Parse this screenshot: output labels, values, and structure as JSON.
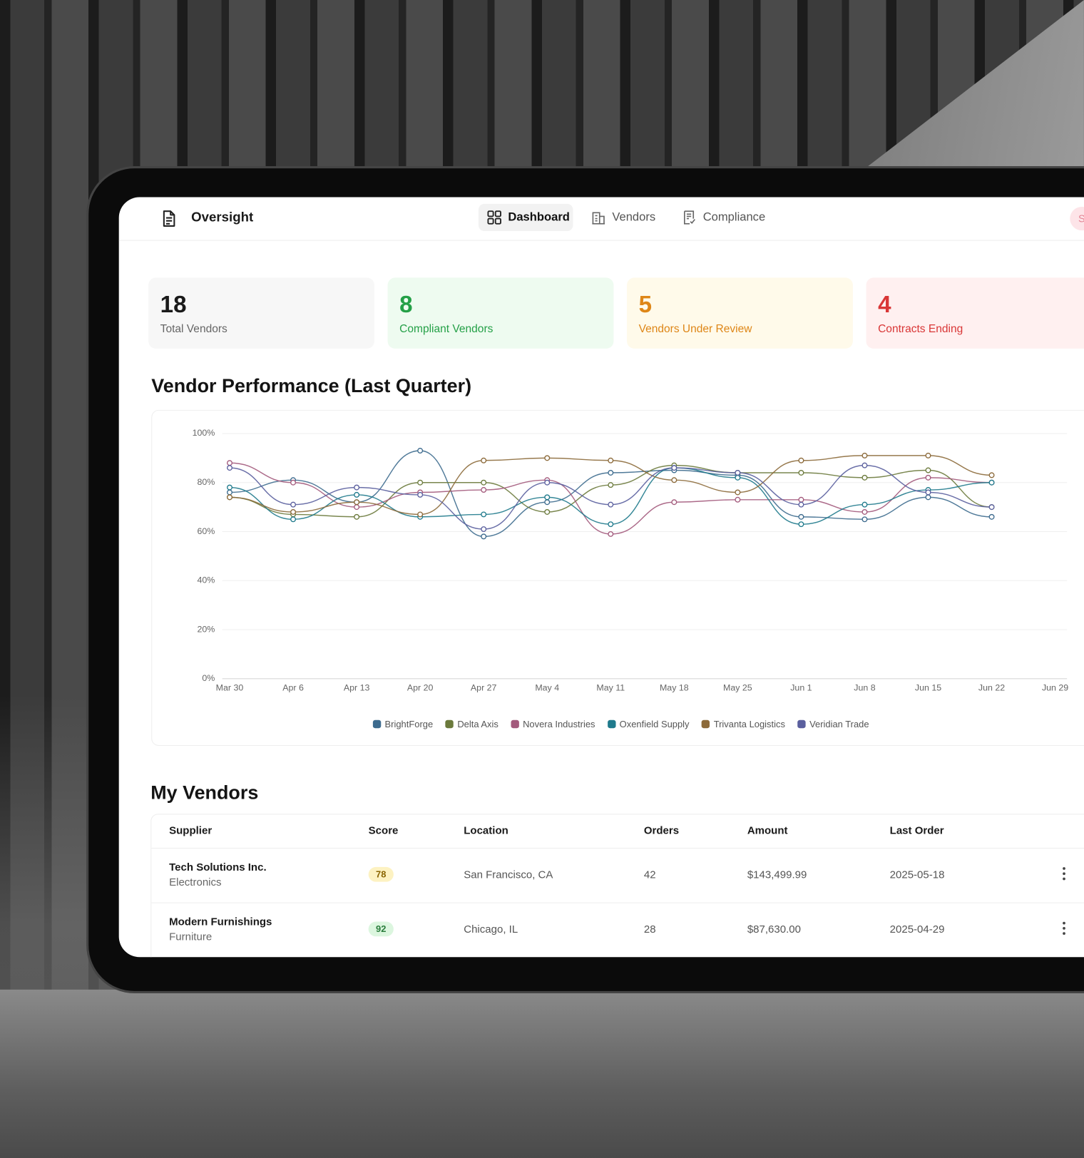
{
  "header": {
    "brand": "Oversight",
    "nav": [
      "Dashboard",
      "Vendors",
      "Compliance"
    ],
    "user_initial": "S"
  },
  "stats": [
    {
      "value": "18",
      "label": "Total Vendors"
    },
    {
      "value": "8",
      "label": "Compliant Vendors"
    },
    {
      "value": "5",
      "label": "Vendors Under Review"
    },
    {
      "value": "4",
      "label": "Contracts Ending"
    }
  ],
  "chart_data": {
    "type": "line",
    "title": "Vendor Performance (Last Quarter)",
    "categories": [
      "Mar 30",
      "Apr 6",
      "Apr 13",
      "Apr 20",
      "Apr 27",
      "May 4",
      "May 11",
      "May 18",
      "May 25",
      "Jun 1",
      "Jun 8",
      "Jun 15",
      "Jun 22",
      "Jun 29"
    ],
    "series": [
      {
        "name": "BrightForge",
        "color": "#3d6b8e",
        "values": [
          76,
          81,
          72,
          93,
          58,
          72,
          84,
          85,
          83,
          66,
          65,
          74,
          66,
          null
        ]
      },
      {
        "name": "Delta Axis",
        "color": "#6b7a3c",
        "values": [
          74,
          67,
          66,
          80,
          80,
          68,
          79,
          87,
          84,
          84,
          82,
          85,
          70,
          null
        ]
      },
      {
        "name": "Novera Industries",
        "color": "#a35a7c",
        "values": [
          88,
          80,
          70,
          76,
          77,
          81,
          59,
          72,
          73,
          73,
          68,
          82,
          80,
          null
        ]
      },
      {
        "name": "Oxenfield Supply",
        "color": "#1f7a8c",
        "values": [
          78,
          65,
          75,
          66,
          67,
          74,
          63,
          86,
          82,
          63,
          71,
          77,
          80,
          null
        ]
      },
      {
        "name": "Trivanta Logistics",
        "color": "#8c6a3a",
        "values": [
          74,
          68,
          72,
          67,
          89,
          90,
          89,
          81,
          76,
          89,
          91,
          91,
          83,
          null
        ]
      },
      {
        "name": "Veridian Trade",
        "color": "#5a5f9e",
        "values": [
          86,
          71,
          78,
          75,
          61,
          80,
          71,
          86,
          84,
          71,
          87,
          76,
          70,
          null
        ]
      }
    ],
    "ylim": [
      0,
      100
    ],
    "yticks": [
      {
        "value": 0,
        "label": "0%"
      },
      {
        "value": 20,
        "label": "20%"
      },
      {
        "value": 40,
        "label": "40%"
      },
      {
        "value": 60,
        "label": "60%"
      },
      {
        "value": 80,
        "label": "80%"
      },
      {
        "value": 100,
        "label": "100%"
      }
    ],
    "grid": true,
    "legend": "bottom"
  },
  "table": {
    "title": "My Vendors",
    "columns": [
      "Supplier",
      "Score",
      "Location",
      "Orders",
      "Amount",
      "Last Order"
    ],
    "rows": [
      {
        "supplier": "Tech Solutions Inc.",
        "category": "Electronics",
        "score": "78",
        "location": "San Francisco, CA",
        "orders": "42",
        "amount": "$143,499.99",
        "last_order": "2025-05-18"
      },
      {
        "supplier": "Modern Furnishings",
        "category": "Furniture",
        "score": "92",
        "location": "Chicago, IL",
        "orders": "28",
        "amount": "$87,630.00",
        "last_order": "2025-04-29"
      }
    ]
  }
}
